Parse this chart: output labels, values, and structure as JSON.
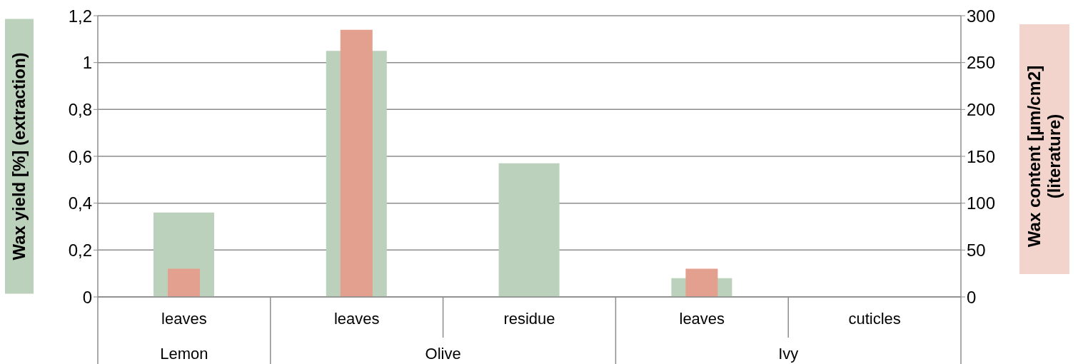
{
  "chart_data": {
    "type": "bar",
    "ylabel": "Wax yield [%] (extraction)",
    "y2label": "Wax content [µm/cm2]\n(literature)",
    "categories": [
      "leaves",
      "leaves",
      "residue",
      "leaves",
      "cuticles"
    ],
    "annotations": [
      "Lemon",
      "Olive",
      "Ivy"
    ],
    "series": [
      {
        "color": "#bcd1bb",
        "values": [
          0.36,
          1.05,
          0.57,
          0.08,
          0
        ]
      },
      {
        "color": "#e3a08f",
        "values": [
          30,
          285,
          null,
          30,
          null
        ],
        "axis": "y2"
      }
    ],
    "ylim": [
      0,
      1.2
    ],
    "yticks": [
      0,
      {
        "value": 0.2,
        "label": "0,2"
      },
      {
        "value": 0.4,
        "label": "0,4"
      },
      {
        "value": 0.6,
        "label": "0,6"
      },
      {
        "value": 0.8,
        "label": "0,8"
      },
      1,
      {
        "value": 1.2,
        "label": "1,2"
      }
    ],
    "y2lim": [
      0,
      300
    ],
    "y2ticks": [
      0,
      50,
      100,
      150,
      200,
      250,
      300
    ],
    "grid": "y"
  }
}
